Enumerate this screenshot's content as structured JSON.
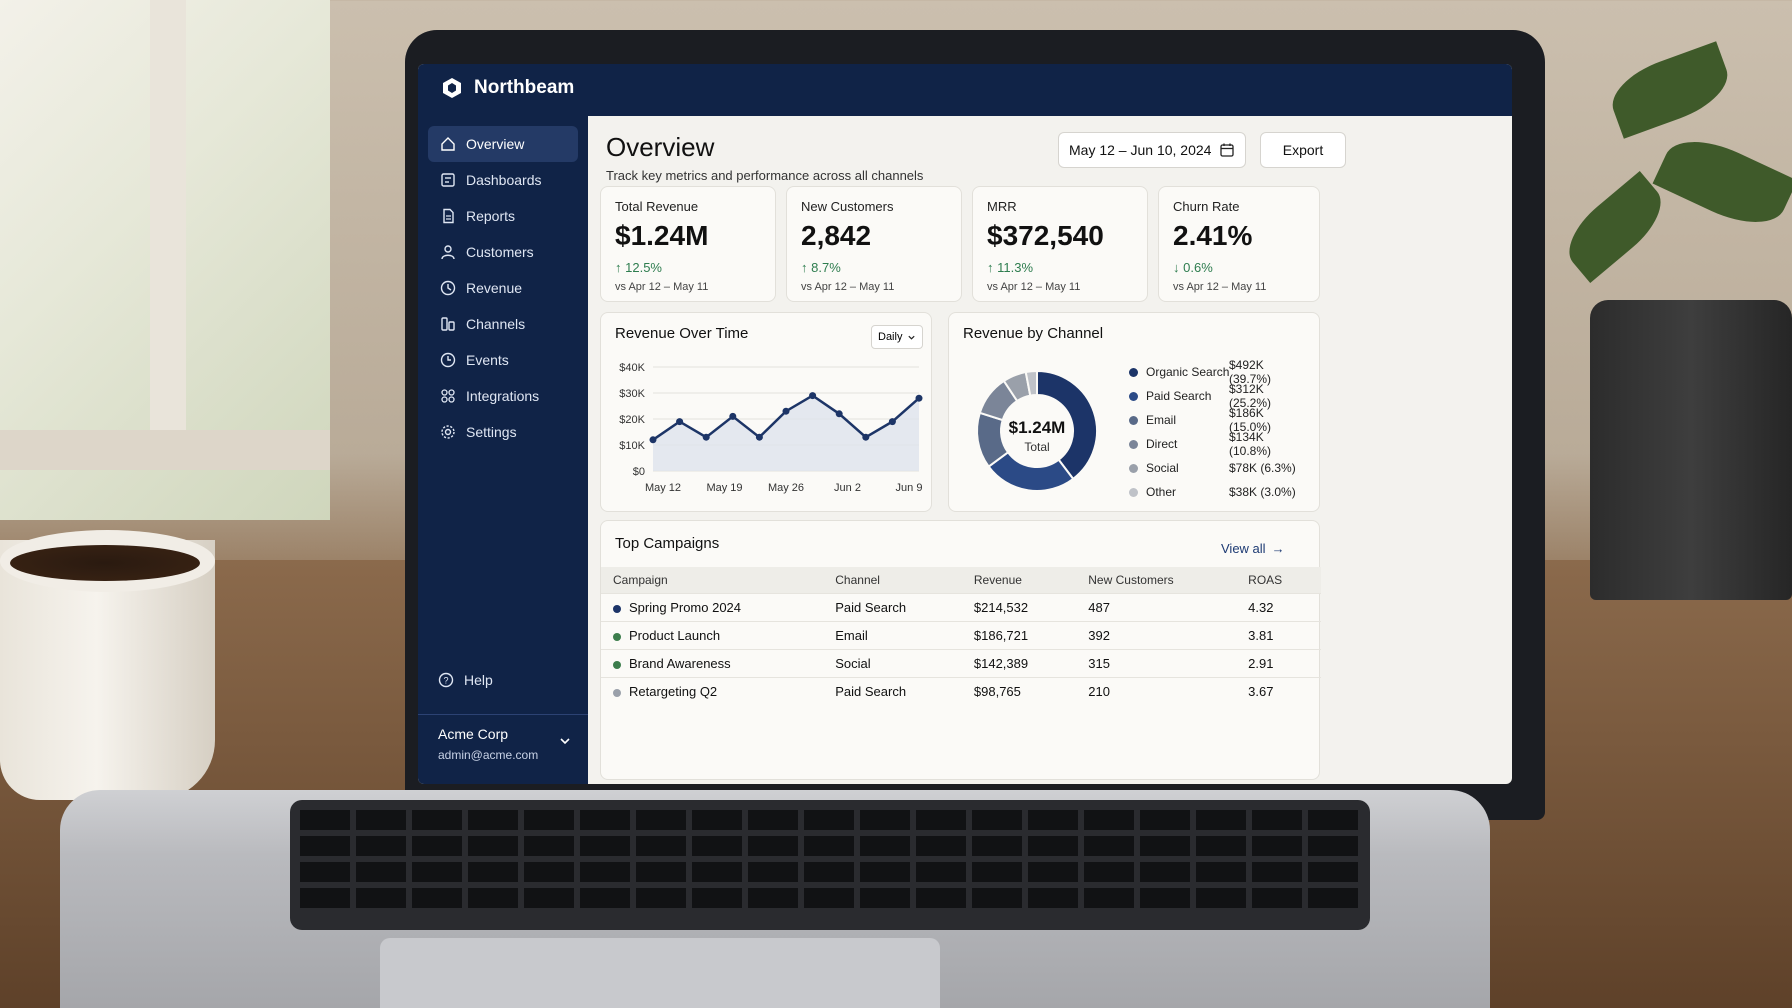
{
  "app": {
    "name": "Northbeam"
  },
  "nav": [
    {
      "label": "Overview",
      "icon": "home-icon",
      "active": true
    },
    {
      "label": "Dashboards",
      "icon": "dashboard-icon"
    },
    {
      "label": "Reports",
      "icon": "report-icon"
    },
    {
      "label": "Customers",
      "icon": "user-icon"
    },
    {
      "label": "Revenue",
      "icon": "revenue-icon"
    },
    {
      "label": "Channels",
      "icon": "channels-icon"
    },
    {
      "label": "Events",
      "icon": "clock-icon"
    },
    {
      "label": "Integrations",
      "icon": "integrations-icon"
    },
    {
      "label": "Settings",
      "icon": "gear-icon"
    }
  ],
  "help": {
    "label": "Help"
  },
  "account": {
    "name": "Acme Corp",
    "email": "admin@acme.com"
  },
  "header": {
    "title": "Overview",
    "subtitle": "Track key metrics and performance across all channels",
    "date_range": "May 12 – Jun 10, 2024",
    "export_label": "Export"
  },
  "kpis": [
    {
      "label": "Total Revenue",
      "value": "$1.24M",
      "delta": "12.5%",
      "direction": "up",
      "compare": "vs Apr 12 – May 11"
    },
    {
      "label": "New Customers",
      "value": "2,842",
      "delta": "8.7%",
      "direction": "up",
      "compare": "vs Apr 12 – May 11"
    },
    {
      "label": "MRR",
      "value": "$372,540",
      "delta": "11.3%",
      "direction": "up",
      "compare": "vs Apr 12 – May 11"
    },
    {
      "label": "Churn Rate",
      "value": "2.41%",
      "delta": "0.6%",
      "direction": "down",
      "compare": "vs Apr 12 – May 11"
    }
  ],
  "revenue_chart": {
    "title": "Revenue Over Time",
    "granularity": "Daily",
    "y_ticks": [
      "$40K",
      "$30K",
      "$20K",
      "$10K",
      "$0"
    ],
    "x_ticks": [
      "May 12",
      "May 19",
      "May 26",
      "Jun 2",
      "Jun 9"
    ]
  },
  "channel_chart": {
    "title": "Revenue by Channel",
    "center_value": "$1.24M",
    "center_label": "Total"
  },
  "chart_data": [
    {
      "type": "line",
      "title": "Revenue Over Time",
      "x": [
        "May 12",
        "May 15",
        "May 19",
        "May 22",
        "May 26",
        "May 29",
        "Jun 1",
        "Jun 4",
        "Jun 6",
        "Jun 8",
        "Jun 10"
      ],
      "values": [
        12000,
        19000,
        13000,
        21000,
        13000,
        23000,
        29000,
        22000,
        13000,
        19000,
        28000
      ],
      "ylim": [
        0,
        40000
      ],
      "y_tick_labels": [
        "$0",
        "$10K",
        "$20K",
        "$30K",
        "$40K"
      ],
      "x_tick_labels": [
        "May 12",
        "May 19",
        "May 26",
        "Jun 2",
        "Jun 9"
      ],
      "color": "#1d3567"
    },
    {
      "type": "pie",
      "title": "Revenue by Channel",
      "categories": [
        "Organic Search",
        "Paid Search",
        "Email",
        "Direct",
        "Social",
        "Other"
      ],
      "values": [
        39.7,
        25.2,
        15.0,
        10.8,
        6.3,
        3.0
      ],
      "value_labels": [
        "$492K (39.7%)",
        "$312K (25.2%)",
        "$186K (15.0%)",
        "$134K (10.8%)",
        "$78K (6.3%)",
        "$38K (3.0%)"
      ],
      "colors": [
        "#1c3468",
        "#2b4a86",
        "#596a88",
        "#7b8598",
        "#9aa0aa",
        "#bfc2c8"
      ]
    }
  ],
  "campaigns": {
    "title": "Top Campaigns",
    "view_all": "View all",
    "columns": [
      "Campaign",
      "Channel",
      "Revenue",
      "New Customers",
      "ROAS"
    ],
    "rows": [
      {
        "campaign": "Spring Promo 2024",
        "channel": "Paid Search",
        "revenue": "$214,532",
        "customers": "487",
        "roas": "4.32",
        "color": "#1c3468"
      },
      {
        "campaign": "Product Launch",
        "channel": "Email",
        "revenue": "$186,721",
        "customers": "392",
        "roas": "3.81",
        "color": "#3c7d4c"
      },
      {
        "campaign": "Brand Awareness",
        "channel": "Social",
        "revenue": "$142,389",
        "customers": "315",
        "roas": "2.91",
        "color": "#3c7d4c"
      },
      {
        "campaign": "Retargeting Q2",
        "channel": "Paid Search",
        "revenue": "$98,765",
        "customers": "210",
        "roas": "3.67",
        "color": "#9aa0aa"
      }
    ]
  }
}
